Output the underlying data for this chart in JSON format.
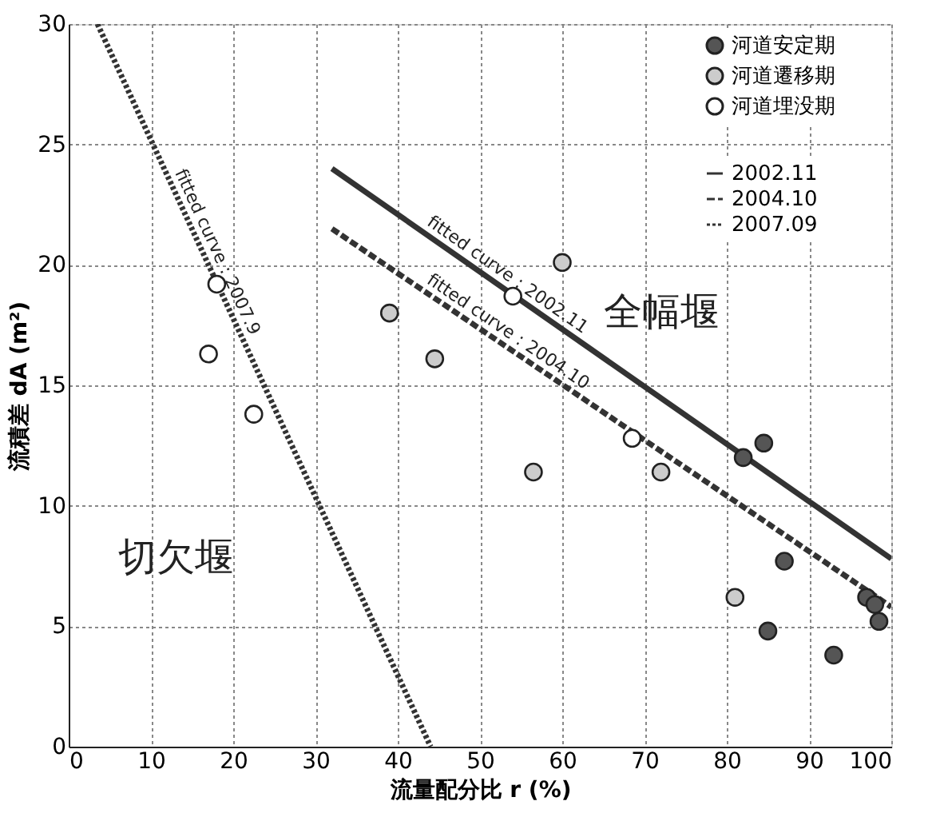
{
  "chart_data": {
    "type": "scatter",
    "xlabel": "流量配分比  r (%)",
    "ylabel": "流積差  dA (m²)",
    "xlim": [
      0,
      100
    ],
    "xticks": [
      0,
      10,
      20,
      30,
      40,
      50,
      60,
      70,
      80,
      90,
      100
    ],
    "ylim": [
      0,
      30
    ],
    "yticks": [
      0,
      5,
      10,
      15,
      20,
      25,
      30
    ],
    "grid": true,
    "legend": "top right",
    "marker": "circle",
    "series": [
      {
        "name": "河道安定期",
        "color": "#555555",
        "x": [
          82,
          84.5,
          87,
          85,
          93,
          97,
          98,
          98.5
        ],
        "values": [
          12.0,
          12.6,
          7.7,
          4.8,
          3.8,
          6.2,
          5.9,
          5.2
        ]
      },
      {
        "name": "河道遷移期",
        "color": "#cccccc",
        "x": [
          39,
          44.5,
          56.5,
          60,
          72,
          81
        ],
        "values": [
          18.0,
          16.1,
          11.4,
          20.1,
          11.4,
          6.2
        ]
      },
      {
        "name": "河道埋没期",
        "color": "#ffffff",
        "x": [
          17,
          22.5,
          18,
          54,
          68.5
        ],
        "values": [
          16.3,
          13.8,
          19.2,
          18.7,
          12.8
        ]
      },
      {
        "name": "2002.11",
        "type": "line",
        "marker": "none",
        "line_style": "solid",
        "color": "#333333",
        "x": [
          32,
          100
        ],
        "values": [
          24.0,
          7.8
        ]
      },
      {
        "name": "2004.10",
        "type": "line",
        "marker": "none",
        "line_style": "dashed",
        "color": "#333333",
        "x": [
          32,
          100
        ],
        "values": [
          21.5,
          5.8
        ]
      },
      {
        "name": "2007.09",
        "type": "line",
        "marker": "none",
        "line_style": "dotted",
        "color": "#333333",
        "x": [
          3.5,
          44
        ],
        "values": [
          30.0,
          0.0
        ]
      }
    ],
    "annotations": [
      "fitted curve : 2002.11",
      "fitted curve : 2004.10",
      "fitted curve : 2007.9",
      "全幅堰",
      "切欠堰"
    ]
  }
}
